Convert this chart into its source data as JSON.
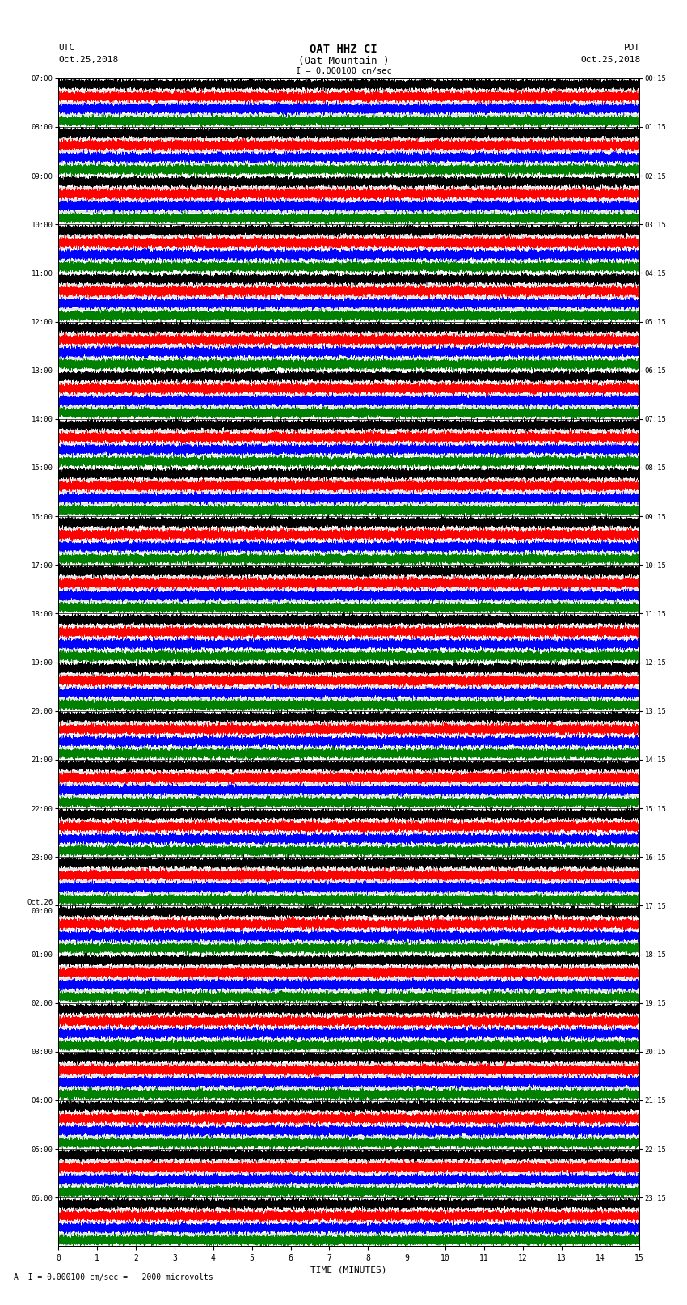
{
  "title_line1": "OAT HHZ CI",
  "title_line2": "(Oat Mountain )",
  "scale_label": "I = 0.000100 cm/sec",
  "footer_label": "A  I = 0.000100 cm/sec =   2000 microvolts",
  "utc_label": "UTC",
  "utc_date": "Oct.25,2018",
  "pdt_label": "PDT",
  "pdt_date": "Oct.25,2018",
  "xlabel": "TIME (MINUTES)",
  "left_times": [
    "07:00",
    "08:00",
    "09:00",
    "10:00",
    "11:00",
    "12:00",
    "13:00",
    "14:00",
    "15:00",
    "16:00",
    "17:00",
    "18:00",
    "19:00",
    "20:00",
    "21:00",
    "22:00",
    "23:00",
    "Oct.26\n00:00",
    "01:00",
    "02:00",
    "03:00",
    "04:00",
    "05:00",
    "06:00"
  ],
  "right_times": [
    "00:15",
    "01:15",
    "02:15",
    "03:15",
    "04:15",
    "05:15",
    "06:15",
    "07:15",
    "08:15",
    "09:15",
    "10:15",
    "11:15",
    "12:15",
    "13:15",
    "14:15",
    "15:15",
    "16:15",
    "17:15",
    "18:15",
    "19:15",
    "20:15",
    "21:15",
    "22:15",
    "23:15"
  ],
  "n_rows": 24,
  "traces_per_row": 4,
  "colors": [
    "black",
    "red",
    "blue",
    "green"
  ],
  "minutes": 15,
  "bg_color": "white",
  "fig_width": 8.5,
  "fig_height": 16.13,
  "dpi": 100
}
